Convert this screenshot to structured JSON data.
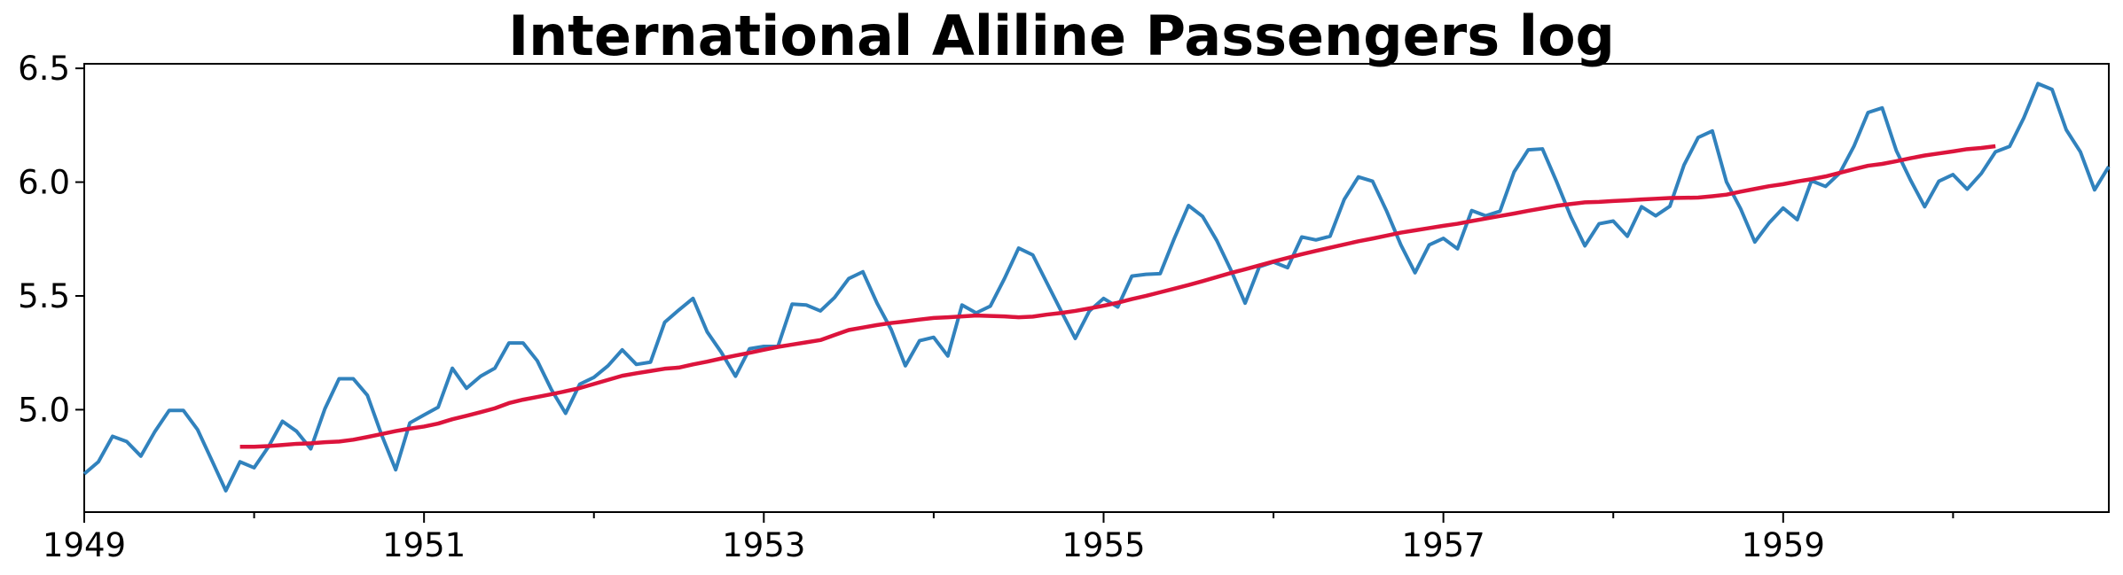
{
  "chart_data": {
    "type": "line",
    "title": "International Aliline Passengers log",
    "xlabel": "",
    "ylabel": "",
    "xlim": [
      1949.0,
      1960.9167
    ],
    "ylim": [
      4.55,
      6.52
    ],
    "grid": false,
    "x_ticks": [
      "1949",
      "1951",
      "1953",
      "1955",
      "1957",
      "1959"
    ],
    "y_ticks": [
      "5.0",
      "5.5",
      "6.0",
      "6.5"
    ],
    "series": [
      {
        "color": "#3182bd",
        "x_start": 1949.0,
        "x_step": 0.08333,
        "values": [
          4.718,
          4.771,
          4.883,
          4.86,
          4.796,
          4.905,
          4.997,
          4.997,
          4.913,
          4.779,
          4.644,
          4.771,
          4.745,
          4.836,
          4.949,
          4.905,
          4.828,
          5.004,
          5.136,
          5.136,
          5.063,
          4.89,
          4.736,
          4.942,
          4.977,
          5.011,
          5.182,
          5.094,
          5.147,
          5.182,
          5.293,
          5.293,
          5.215,
          5.088,
          4.984,
          5.112,
          5.142,
          5.193,
          5.263,
          5.199,
          5.209,
          5.384,
          5.438,
          5.489,
          5.342,
          5.252,
          5.147,
          5.268,
          5.278,
          5.278,
          5.464,
          5.46,
          5.434,
          5.493,
          5.576,
          5.606,
          5.468,
          5.352,
          5.193,
          5.303,
          5.318,
          5.236,
          5.46,
          5.425,
          5.455,
          5.576,
          5.71,
          5.68,
          5.557,
          5.434,
          5.313,
          5.434,
          5.489,
          5.451,
          5.587,
          5.595,
          5.598,
          5.753,
          5.897,
          5.849,
          5.743,
          5.613,
          5.468,
          5.628,
          5.649,
          5.624,
          5.759,
          5.746,
          5.762,
          5.924,
          6.023,
          6.004,
          5.872,
          5.724,
          5.602,
          5.724,
          5.753,
          5.707,
          5.875,
          5.852,
          5.872,
          6.045,
          6.142,
          6.146,
          6.002,
          5.849,
          5.72,
          5.817,
          5.829,
          5.762,
          5.892,
          5.852,
          5.894,
          6.075,
          6.196,
          6.225,
          6.001,
          5.883,
          5.737,
          5.82,
          5.886,
          5.835,
          6.006,
          5.981,
          6.04,
          6.157,
          6.306,
          6.326,
          6.138,
          6.009,
          5.892,
          6.004,
          6.033,
          5.969,
          6.038,
          6.133,
          6.157,
          6.282,
          6.433,
          6.407,
          6.23,
          6.133,
          5.966,
          6.068
        ]
      },
      {
        "color": "#dc143c",
        "x_start": 1949.9167,
        "x_step": 0.08333,
        "values": [
          4.837,
          4.837,
          4.84,
          4.845,
          4.85,
          4.852,
          4.857,
          4.86,
          4.868,
          4.88,
          4.893,
          4.906,
          4.917,
          4.926,
          4.939,
          4.958,
          4.973,
          4.989,
          5.006,
          5.029,
          5.044,
          5.056,
          5.068,
          5.081,
          5.095,
          5.113,
          5.131,
          5.149,
          5.16,
          5.17,
          5.18,
          5.185,
          5.199,
          5.211,
          5.225,
          5.238,
          5.25,
          5.263,
          5.276,
          5.286,
          5.296,
          5.306,
          5.328,
          5.35,
          5.361,
          5.372,
          5.381,
          5.388,
          5.396,
          5.403,
          5.406,
          5.41,
          5.414,
          5.412,
          5.41,
          5.406,
          5.409,
          5.418,
          5.425,
          5.434,
          5.445,
          5.457,
          5.47,
          5.486,
          5.5,
          5.516,
          5.532,
          5.548,
          5.565,
          5.583,
          5.601,
          5.617,
          5.634,
          5.651,
          5.667,
          5.683,
          5.698,
          5.712,
          5.726,
          5.74,
          5.752,
          5.765,
          5.778,
          5.788,
          5.798,
          5.808,
          5.817,
          5.829,
          5.84,
          5.851,
          5.862,
          5.874,
          5.885,
          5.896,
          5.904,
          5.911,
          5.913,
          5.917,
          5.92,
          5.924,
          5.927,
          5.93,
          5.931,
          5.932,
          5.938,
          5.945,
          5.958,
          5.97,
          5.982,
          5.991,
          6.003,
          6.013,
          6.025,
          6.041,
          6.057,
          6.072,
          6.08,
          6.092,
          6.105,
          6.117,
          6.126,
          6.135,
          6.145,
          6.15,
          6.158
        ]
      }
    ]
  }
}
